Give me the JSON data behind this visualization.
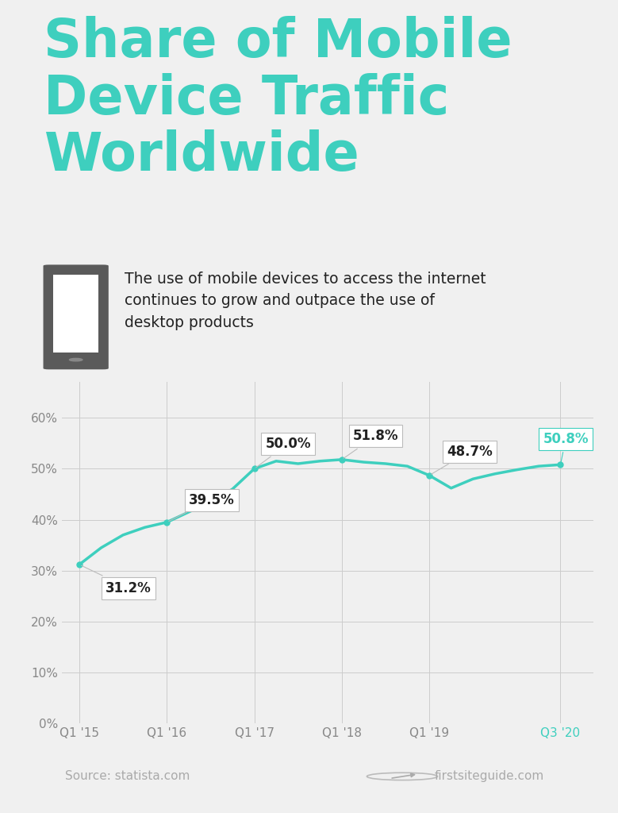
{
  "title": "Share of Mobile\nDevice Traffic\nWorldwide",
  "title_color": "#3ecfbe",
  "subtitle": "The use of mobile devices to access the internet\ncontinues to grow and outpace the use of\ndesktop products",
  "subtitle_color": "#222222",
  "background_color": "#f0f0f0",
  "line_color": "#3ecfbe",
  "line_width": 2.5,
  "marker_color": "#3ecfbe",
  "marker_size": 5,
  "source_text": "Source: statista.com",
  "brand_text": "firstsiteguide.com",
  "footer_color": "#aaaaaa",
  "x_labels": [
    "Q1 '15",
    "Q1 '16",
    "Q1 '17",
    "Q1 '18",
    "Q1 '19",
    "Q3 '20"
  ],
  "x_tick_positions": [
    0,
    4,
    8,
    12,
    16,
    22
  ],
  "y_ticks": [
    0,
    10,
    20,
    30,
    40,
    50,
    60
  ],
  "y_tick_labels": [
    "0%",
    "10%",
    "20%",
    "30%",
    "40%",
    "50%",
    "60%"
  ],
  "annotated_points": [
    {
      "xi": 0,
      "yi": 31.2,
      "label": "31.2%",
      "is_teal": false,
      "ann_xi": 1.2,
      "ann_yi": 28.0,
      "va": "top"
    },
    {
      "xi": 4,
      "yi": 39.5,
      "label": "39.5%",
      "is_teal": false,
      "ann_xi": 5.0,
      "ann_yi": 42.5,
      "va": "bottom"
    },
    {
      "xi": 8,
      "yi": 50.0,
      "label": "50.0%",
      "is_teal": false,
      "ann_xi": 8.5,
      "ann_yi": 53.5,
      "va": "bottom"
    },
    {
      "xi": 12,
      "yi": 51.8,
      "label": "51.8%",
      "is_teal": false,
      "ann_xi": 12.5,
      "ann_yi": 55.0,
      "va": "bottom"
    },
    {
      "xi": 16,
      "yi": 48.7,
      "label": "48.7%",
      "is_teal": false,
      "ann_xi": 16.8,
      "ann_yi": 52.0,
      "va": "bottom"
    },
    {
      "xi": 22,
      "yi": 50.8,
      "label": "50.8%",
      "is_teal": true,
      "ann_xi": 21.2,
      "ann_yi": 54.5,
      "va": "bottom"
    }
  ],
  "data_x": [
    0,
    1,
    2,
    3,
    4,
    5,
    6,
    7,
    8,
    9,
    10,
    11,
    12,
    13,
    14,
    15,
    16,
    17,
    18,
    19,
    20,
    21,
    22
  ],
  "data_y": [
    31.2,
    34.5,
    37.0,
    38.5,
    39.5,
    41.5,
    43.5,
    46.0,
    50.0,
    51.5,
    51.0,
    51.5,
    51.8,
    51.3,
    51.0,
    50.5,
    48.7,
    46.2,
    48.0,
    49.0,
    49.8,
    50.5,
    50.8
  ]
}
